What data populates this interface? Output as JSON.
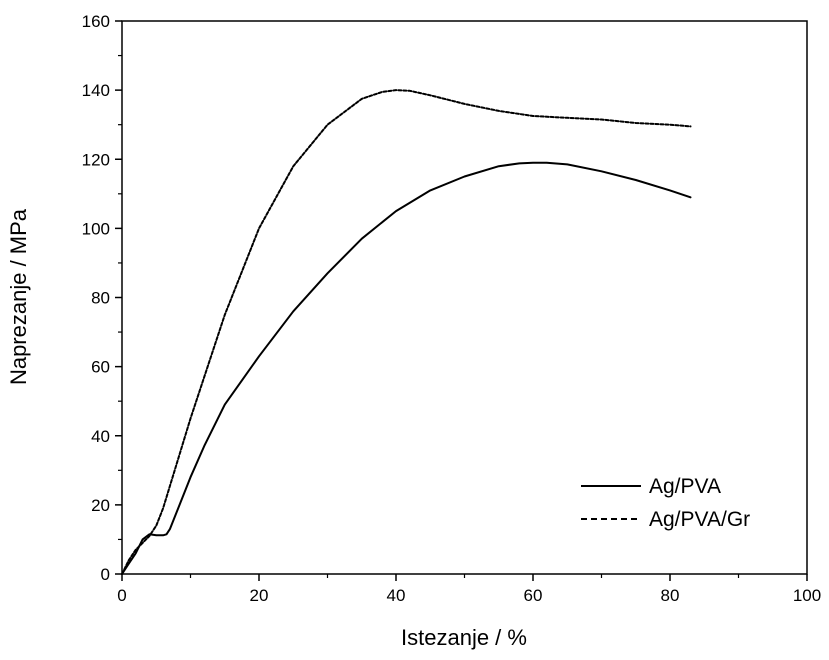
{
  "chart_data": {
    "type": "line",
    "xlabel": "Istezanje / %",
    "ylabel": "Naprezanje / MPa",
    "xlim": [
      0,
      100
    ],
    "ylim": [
      0,
      160
    ],
    "xticks": [
      0,
      20,
      40,
      60,
      80,
      100
    ],
    "yticks": [
      0,
      20,
      40,
      60,
      80,
      100,
      120,
      140,
      160
    ],
    "xtick_labels": [
      "0",
      "20",
      "40",
      "60",
      "80",
      "100"
    ],
    "ytick_labels": [
      "0",
      "20",
      "40",
      "60",
      "80",
      "100",
      "120",
      "140",
      "160"
    ],
    "grid": false,
    "legend_position": "lower-right",
    "series": [
      {
        "name": "Ag/PVA",
        "line_style": "solid",
        "color": "#000000",
        "x": [
          0,
          1,
          2,
          3,
          4,
          5,
          6,
          6.5,
          7,
          8,
          10,
          12,
          15,
          20,
          25,
          30,
          35,
          40,
          45,
          50,
          55,
          58,
          60,
          62,
          65,
          70,
          75,
          80,
          83
        ],
        "y": [
          0,
          3,
          6,
          10,
          11.5,
          11.2,
          11.2,
          11.5,
          13,
          18,
          28,
          37,
          49,
          63,
          76,
          87,
          97,
          105,
          111,
          115,
          118,
          118.8,
          119,
          119,
          118.5,
          116.5,
          114,
          111,
          109
        ]
      },
      {
        "name": "Ag/PVA/Gr",
        "line_style": "dashed",
        "color": "#000000",
        "x": [
          0,
          1,
          2,
          3,
          4,
          5,
          6,
          8,
          10,
          15,
          20,
          25,
          30,
          35,
          38,
          40,
          42,
          45,
          50,
          55,
          60,
          65,
          70,
          75,
          80,
          83
        ],
        "y": [
          0,
          4,
          7,
          9,
          11,
          14,
          19,
          32,
          45,
          75,
          100,
          118,
          130,
          137.5,
          139.5,
          140,
          139.8,
          138.5,
          136,
          134,
          132.5,
          132,
          131.5,
          130.5,
          130,
          129.5
        ]
      }
    ]
  }
}
